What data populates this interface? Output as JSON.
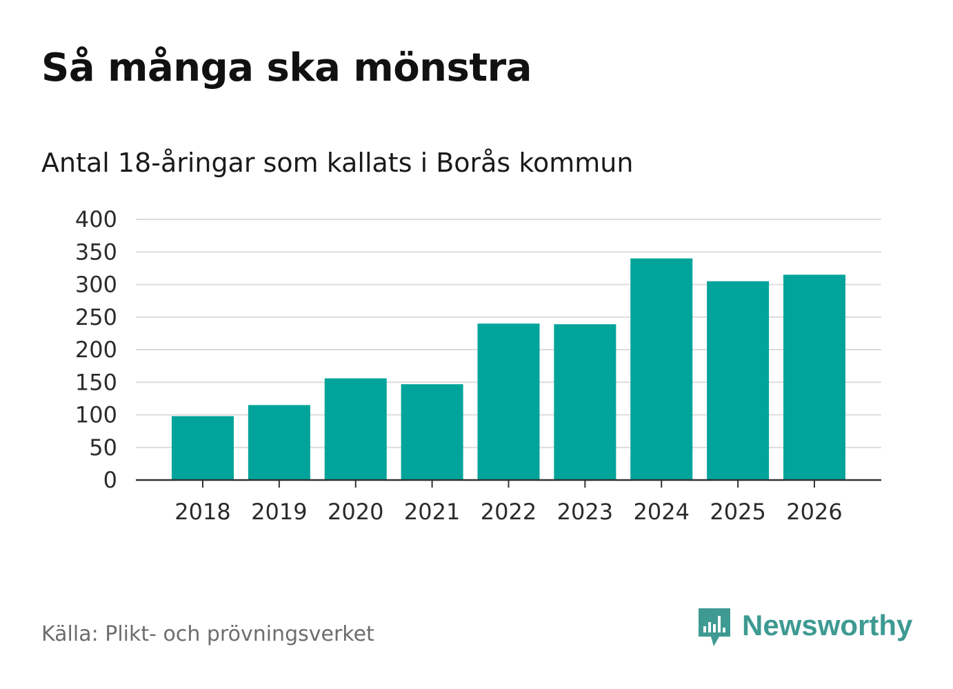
{
  "header": {
    "title": "Så många ska mönstra",
    "subtitle": "Antal 18-åringar som kallats i Borås kommun"
  },
  "chart_data": {
    "type": "bar",
    "title": "Så många ska mönstra",
    "subtitle": "Antal 18-åringar som kallats i Borås kommun",
    "categories": [
      "2018",
      "2019",
      "2020",
      "2021",
      "2022",
      "2023",
      "2024",
      "2025",
      "2026"
    ],
    "values": [
      98,
      115,
      156,
      147,
      240,
      239,
      340,
      305,
      315
    ],
    "xlabel": "",
    "ylabel": "",
    "ylim": [
      0,
      400
    ],
    "yticks": [
      0,
      50,
      100,
      150,
      200,
      250,
      300,
      350,
      400
    ],
    "grid": true,
    "bar_color": "#00a49a"
  },
  "footer": {
    "source": "Källa: Plikt- och prövningsverket",
    "brand_name": "Newsworthy",
    "brand_color": "#3e9a92"
  }
}
